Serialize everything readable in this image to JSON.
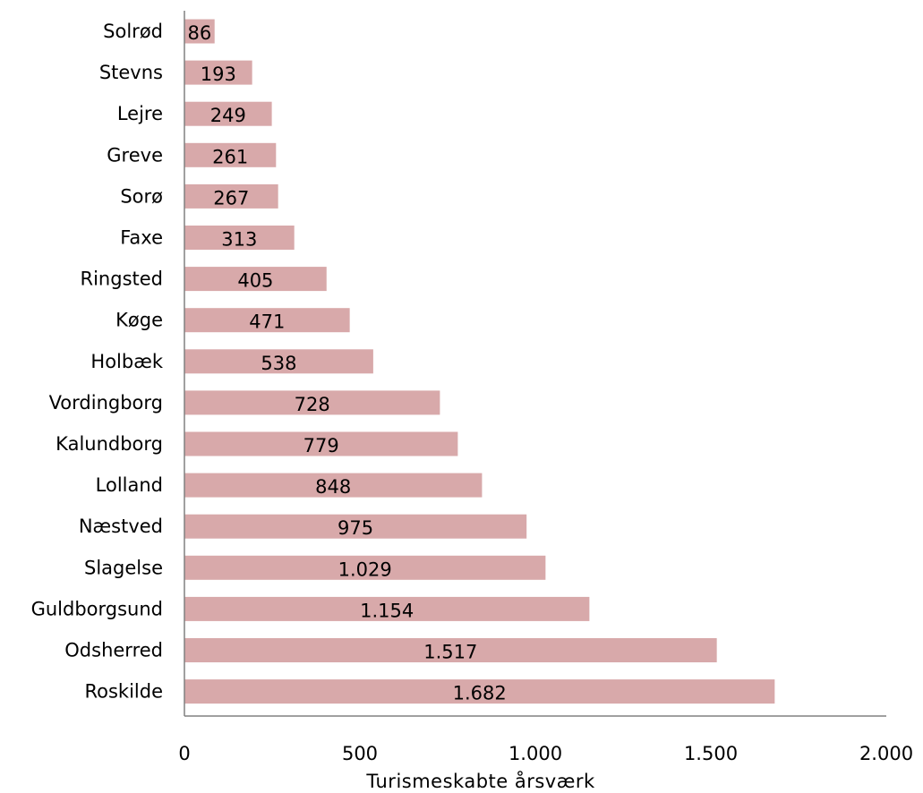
{
  "chart_data": {
    "type": "bar",
    "orientation": "horizontal",
    "categories": [
      "Solrød",
      "Stevns",
      "Lejre",
      "Greve",
      "Sorø",
      "Faxe",
      "Ringsted",
      "Køge",
      "Holbæk",
      "Vordingborg",
      "Kalundborg",
      "Lolland",
      "Næstved",
      "Slagelse",
      "Guldborgsund",
      "Odsherred",
      "Roskilde"
    ],
    "values": [
      86,
      193,
      249,
      261,
      267,
      313,
      405,
      471,
      538,
      728,
      779,
      848,
      975,
      1029,
      1154,
      1517,
      1682
    ],
    "value_labels": [
      "86",
      "193",
      "249",
      "261",
      "267",
      "313",
      "405",
      "471",
      "538",
      "728",
      "779",
      "848",
      "975",
      "1.029",
      "1.154",
      "1.517",
      "1.682"
    ],
    "xlabel": "Turismeskabte årsværk",
    "xlim": [
      0,
      2000
    ],
    "xticks": [
      0,
      500,
      1000,
      1500,
      2000
    ],
    "xtick_labels": [
      "0",
      "500",
      "1.000",
      "1.500",
      "2.000"
    ],
    "bar_color": "#d8a9aa",
    "grid": false,
    "legend": "none"
  }
}
